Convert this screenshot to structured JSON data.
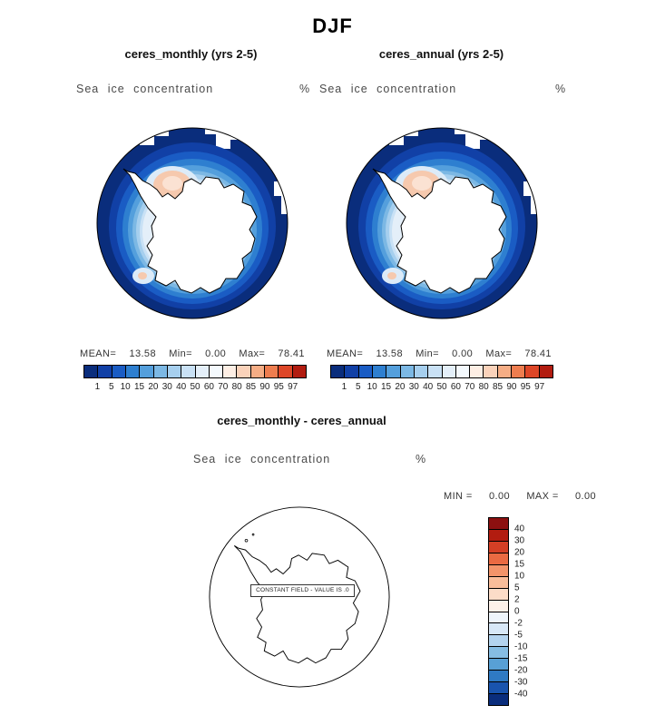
{
  "page_title": "DJF",
  "panels": {
    "monthly": {
      "header": "ceres_monthly (yrs 2-5)",
      "field_label": "Sea ice concentration",
      "units": "%",
      "stats": {
        "mean_label": "MEAN=",
        "mean": "13.58",
        "min_label": "Min=",
        "min": "0.00",
        "max_label": "Max=",
        "max": "78.41"
      }
    },
    "annual": {
      "header": "ceres_annual (yrs 2-5)",
      "field_label": "Sea ice concentration",
      "units": "%",
      "stats": {
        "mean_label": "MEAN=",
        "mean": "13.58",
        "min_label": "Min=",
        "min": "0.00",
        "max_label": "Max=",
        "max": "78.41"
      }
    }
  },
  "colorbar": {
    "tick_labels": [
      "1",
      "5",
      "10",
      "15",
      "20",
      "30",
      "40",
      "50",
      "60",
      "70",
      "80",
      "85",
      "90",
      "95",
      "97"
    ],
    "colors": [
      "#0a2d7c",
      "#1140a6",
      "#1a5cc4",
      "#2e7fd0",
      "#549fdc",
      "#7cb8e4",
      "#a6cfee",
      "#c9e1f5",
      "#e4eff9",
      "#f4f9fd",
      "#fdeee4",
      "#fad2ba",
      "#f5ad85",
      "#ee7d4f",
      "#dd4627",
      "#b21c10"
    ]
  },
  "diff": {
    "title": "ceres_monthly - ceres_annual",
    "field_label": "Sea ice concentration",
    "units": "%",
    "min_label": "MIN =",
    "min": "0.00",
    "max_label": "MAX =",
    "max": "0.00",
    "constant_note": "CONSTANT FIELD - VALUE IS .0",
    "colorbar": {
      "tick_labels": [
        "40",
        "30",
        "20",
        "15",
        "10",
        "5",
        "2",
        "0",
        "-2",
        "-5",
        "-10",
        "-15",
        "-20",
        "-30",
        "-40"
      ],
      "colors": [
        "#8c1010",
        "#b21c10",
        "#d43f25",
        "#ea6a42",
        "#f3946a",
        "#f9bd9a",
        "#fcdcc8",
        "#fdf1e9",
        "#eef5fb",
        "#d8e8f7",
        "#b4d4ef",
        "#86bde3",
        "#58a0d5",
        "#2f7ac3",
        "#1954ae",
        "#0a2d7c"
      ]
    }
  },
  "chart_data": [
    {
      "type": "heatmap",
      "title": "ceres_monthly (yrs 2-5)",
      "variable": "Sea ice concentration",
      "units": "%",
      "projection": "antarctic polar stereographic",
      "contour_levels": [
        1,
        5,
        10,
        15,
        20,
        30,
        40,
        50,
        60,
        70,
        80,
        85,
        90,
        95,
        97
      ],
      "stats": {
        "mean": 13.58,
        "min": 0.0,
        "max": 78.41
      },
      "legend_position": "bottom"
    },
    {
      "type": "heatmap",
      "title": "ceres_annual (yrs 2-5)",
      "variable": "Sea ice concentration",
      "units": "%",
      "projection": "antarctic polar stereographic",
      "contour_levels": [
        1,
        5,
        10,
        15,
        20,
        30,
        40,
        50,
        60,
        70,
        80,
        85,
        90,
        95,
        97
      ],
      "stats": {
        "mean": 13.58,
        "min": 0.0,
        "max": 78.41
      },
      "legend_position": "bottom"
    },
    {
      "type": "heatmap",
      "title": "ceres_monthly - ceres_annual",
      "variable": "Sea ice concentration",
      "units": "%",
      "projection": "antarctic polar stereographic",
      "contour_levels": [
        -40,
        -30,
        -20,
        -15,
        -10,
        -5,
        -2,
        0,
        2,
        5,
        10,
        15,
        20,
        30,
        40
      ],
      "stats": {
        "min": 0.0,
        "max": 0.0
      },
      "annotation": "CONSTANT FIELD - VALUE IS .0",
      "legend_position": "right"
    }
  ]
}
